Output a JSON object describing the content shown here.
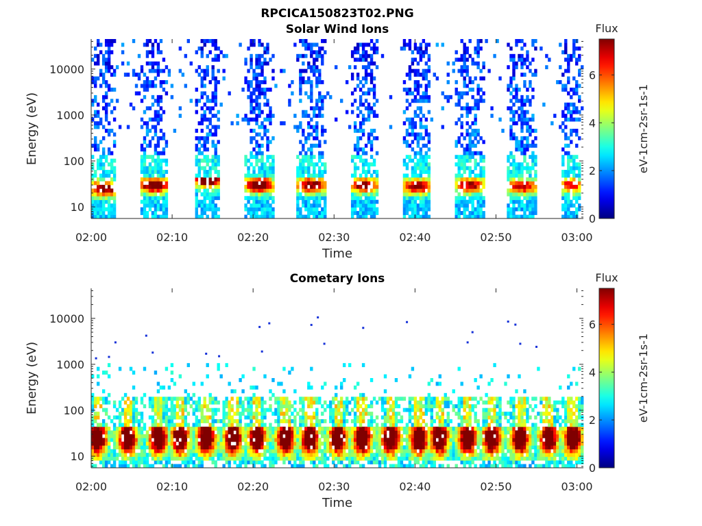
{
  "figure_title": "RPCICA150823T02.PNG",
  "chart_data": [
    {
      "type": "heatmap",
      "title": "Solar Wind Ions",
      "xlabel": "Time",
      "ylabel": "Energy (eV)",
      "x_range": [
        "02:00",
        "03:00"
      ],
      "x_ticks": [
        "02:00",
        "02:10",
        "02:20",
        "02:30",
        "02:40",
        "02:50",
        "03:00"
      ],
      "y_scale": "log",
      "y_range_eV": [
        5.6,
        45000
      ],
      "y_ticks": [
        "10",
        "100",
        "1000",
        "10000"
      ],
      "y_tick_values": [
        10,
        100,
        1000,
        10000
      ],
      "colorbar": {
        "title": "Flux",
        "label": "eV-1cm-2sr-1s-1",
        "ticks": [
          0,
          2,
          4,
          6
        ],
        "range": [
          0,
          7.5
        ],
        "colormap": "jet"
      },
      "sweep_period_min": 6.5,
      "sweeps": [
        {
          "start_min": 0.0,
          "end_min": 3.2,
          "peak_eV": 25,
          "peak_flux": 5.6
        },
        {
          "start_min": 6.0,
          "end_min": 9.5,
          "peak_eV": 30,
          "peak_flux": 6.0
        },
        {
          "start_min": 12.8,
          "end_min": 16.0,
          "peak_eV": 40,
          "peak_flux": 6.5
        },
        {
          "start_min": 19.0,
          "end_min": 22.5,
          "peak_eV": 30,
          "peak_flux": 6.0
        },
        {
          "start_min": 25.5,
          "end_min": 29.0,
          "peak_eV": 30,
          "peak_flux": 5.5
        },
        {
          "start_min": 32.0,
          "end_min": 35.5,
          "peak_eV": 30,
          "peak_flux": 5.3
        },
        {
          "start_min": 38.5,
          "end_min": 42.0,
          "peak_eV": 28,
          "peak_flux": 5.3
        },
        {
          "start_min": 45.0,
          "end_min": 48.5,
          "peak_eV": 30,
          "peak_flux": 5.0
        },
        {
          "start_min": 51.5,
          "end_min": 55.0,
          "peak_eV": 28,
          "peak_flux": 4.8
        },
        {
          "start_min": 58.0,
          "end_min": 60.5,
          "peak_eV": 30,
          "peak_flux": 4.6
        }
      ]
    },
    {
      "type": "heatmap",
      "title": "Cometary Ions",
      "xlabel": "Time",
      "ylabel": "Energy (eV)",
      "x_range": [
        "02:00",
        "03:00"
      ],
      "x_ticks": [
        "02:00",
        "02:10",
        "02:20",
        "02:30",
        "02:40",
        "02:50",
        "03:00"
      ],
      "y_scale": "log",
      "y_range_eV": [
        5.6,
        45000
      ],
      "y_ticks": [
        "10",
        "100",
        "1000",
        "10000"
      ],
      "y_tick_values": [
        10,
        100,
        1000,
        10000
      ],
      "colorbar": {
        "title": "Flux",
        "label": "eV-1cm-2sr-1s-1",
        "ticks": [
          0,
          2,
          4,
          6
        ],
        "range": [
          0,
          7.5
        ],
        "colormap": "jet"
      },
      "band_eV": [
        8,
        45
      ],
      "blob_centers_min": [
        0.8,
        4.5,
        8.3,
        11.0,
        14.2,
        17.5,
        20.5,
        24.0,
        27.0,
        30.5,
        33.5,
        37.0,
        40.5,
        43.0,
        46.5,
        49.5,
        53.0,
        56.5,
        59.5
      ],
      "scattered_high_energy_points": [
        {
          "t_min": 0.6,
          "eV": 1350
        },
        {
          "t_min": 2.2,
          "eV": 1450
        },
        {
          "t_min": 3.0,
          "eV": 3000
        },
        {
          "t_min": 6.8,
          "eV": 4200
        },
        {
          "t_min": 7.6,
          "eV": 1800
        },
        {
          "t_min": 14.2,
          "eV": 1700
        },
        {
          "t_min": 15.8,
          "eV": 1500
        },
        {
          "t_min": 20.8,
          "eV": 6500
        },
        {
          "t_min": 21.1,
          "eV": 1900
        },
        {
          "t_min": 22.0,
          "eV": 7800
        },
        {
          "t_min": 27.2,
          "eV": 7200
        },
        {
          "t_min": 28.0,
          "eV": 10500
        },
        {
          "t_min": 28.8,
          "eV": 2800
        },
        {
          "t_min": 33.6,
          "eV": 6200
        },
        {
          "t_min": 39.0,
          "eV": 8300
        },
        {
          "t_min": 46.5,
          "eV": 3000
        },
        {
          "t_min": 47.1,
          "eV": 5000
        },
        {
          "t_min": 51.5,
          "eV": 8500
        },
        {
          "t_min": 52.4,
          "eV": 7300
        },
        {
          "t_min": 53.0,
          "eV": 2800
        },
        {
          "t_min": 55.0,
          "eV": 2400
        }
      ]
    }
  ]
}
